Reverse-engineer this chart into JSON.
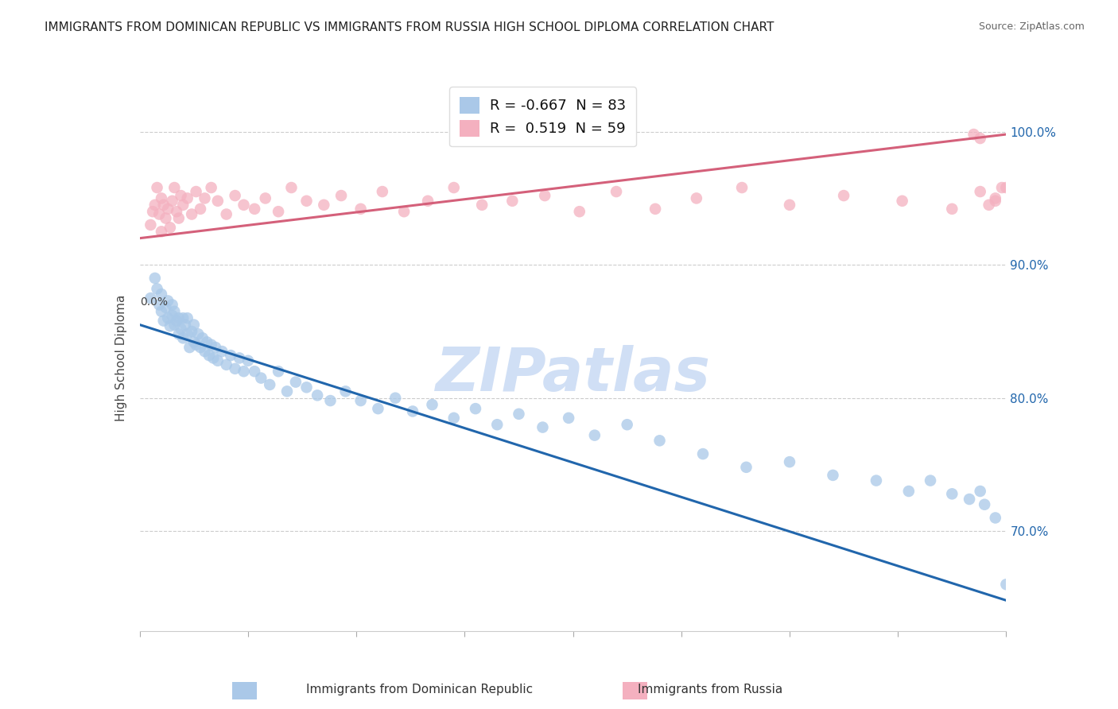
{
  "title": "IMMIGRANTS FROM DOMINICAN REPUBLIC VS IMMIGRANTS FROM RUSSIA HIGH SCHOOL DIPLOMA CORRELATION CHART",
  "source": "Source: ZipAtlas.com",
  "ylabel": "High School Diploma",
  "ytick_labels": [
    "100.0%",
    "90.0%",
    "80.0%",
    "70.0%"
  ],
  "ytick_values": [
    1.0,
    0.9,
    0.8,
    0.7
  ],
  "xlim": [
    0.0,
    0.4
  ],
  "ylim": [
    0.625,
    1.035
  ],
  "blue_color": "#a8c8e8",
  "pink_color": "#f4b0bf",
  "blue_line_color": "#2166ac",
  "pink_line_color": "#d4607a",
  "background_color": "#ffffff",
  "watermark_text": "ZIPatlas",
  "watermark_color": "#d0dff5",
  "title_fontsize": 11,
  "source_fontsize": 9,
  "blue_dots_x": [
    0.005,
    0.007,
    0.008,
    0.009,
    0.01,
    0.01,
    0.011,
    0.012,
    0.013,
    0.013,
    0.014,
    0.015,
    0.015,
    0.016,
    0.016,
    0.017,
    0.018,
    0.018,
    0.019,
    0.02,
    0.02,
    0.021,
    0.022,
    0.022,
    0.023,
    0.024,
    0.025,
    0.025,
    0.026,
    0.027,
    0.028,
    0.029,
    0.03,
    0.031,
    0.032,
    0.033,
    0.034,
    0.035,
    0.036,
    0.038,
    0.04,
    0.042,
    0.044,
    0.046,
    0.048,
    0.05,
    0.053,
    0.056,
    0.06,
    0.064,
    0.068,
    0.072,
    0.077,
    0.082,
    0.088,
    0.095,
    0.102,
    0.11,
    0.118,
    0.126,
    0.135,
    0.145,
    0.155,
    0.165,
    0.175,
    0.186,
    0.198,
    0.21,
    0.225,
    0.24,
    0.26,
    0.28,
    0.3,
    0.32,
    0.34,
    0.355,
    0.365,
    0.375,
    0.383,
    0.388,
    0.39,
    0.395,
    0.4
  ],
  "blue_dots_y": [
    0.875,
    0.89,
    0.882,
    0.87,
    0.865,
    0.878,
    0.858,
    0.868,
    0.86,
    0.873,
    0.854,
    0.862,
    0.87,
    0.855,
    0.865,
    0.858,
    0.86,
    0.848,
    0.852,
    0.86,
    0.845,
    0.855,
    0.848,
    0.86,
    0.838,
    0.85,
    0.842,
    0.855,
    0.84,
    0.848,
    0.838,
    0.845,
    0.835,
    0.842,
    0.832,
    0.84,
    0.83,
    0.838,
    0.828,
    0.835,
    0.825,
    0.832,
    0.822,
    0.83,
    0.82,
    0.828,
    0.82,
    0.815,
    0.81,
    0.82,
    0.805,
    0.812,
    0.808,
    0.802,
    0.798,
    0.805,
    0.798,
    0.792,
    0.8,
    0.79,
    0.795,
    0.785,
    0.792,
    0.78,
    0.788,
    0.778,
    0.785,
    0.772,
    0.78,
    0.768,
    0.758,
    0.748,
    0.752,
    0.742,
    0.738,
    0.73,
    0.738,
    0.728,
    0.724,
    0.73,
    0.72,
    0.71,
    0.66
  ],
  "pink_dots_x": [
    0.005,
    0.006,
    0.007,
    0.008,
    0.009,
    0.01,
    0.01,
    0.011,
    0.012,
    0.013,
    0.014,
    0.015,
    0.016,
    0.017,
    0.018,
    0.019,
    0.02,
    0.022,
    0.024,
    0.026,
    0.028,
    0.03,
    0.033,
    0.036,
    0.04,
    0.044,
    0.048,
    0.053,
    0.058,
    0.064,
    0.07,
    0.077,
    0.085,
    0.093,
    0.102,
    0.112,
    0.122,
    0.133,
    0.145,
    0.158,
    0.172,
    0.187,
    0.203,
    0.22,
    0.238,
    0.257,
    0.278,
    0.3,
    0.325,
    0.352,
    0.375,
    0.388,
    0.395,
    0.398,
    0.4,
    0.395,
    0.392,
    0.388,
    0.385
  ],
  "pink_dots_y": [
    0.93,
    0.94,
    0.945,
    0.958,
    0.938,
    0.95,
    0.925,
    0.945,
    0.935,
    0.942,
    0.928,
    0.948,
    0.958,
    0.94,
    0.935,
    0.952,
    0.945,
    0.95,
    0.938,
    0.955,
    0.942,
    0.95,
    0.958,
    0.948,
    0.938,
    0.952,
    0.945,
    0.942,
    0.95,
    0.94,
    0.958,
    0.948,
    0.945,
    0.952,
    0.942,
    0.955,
    0.94,
    0.948,
    0.958,
    0.945,
    0.948,
    0.952,
    0.94,
    0.955,
    0.942,
    0.95,
    0.958,
    0.945,
    0.952,
    0.948,
    0.942,
    0.955,
    0.948,
    0.958,
    0.958,
    0.95,
    0.945,
    0.995,
    0.998
  ],
  "blue_line_x": [
    0.0,
    0.4
  ],
  "blue_line_y": [
    0.855,
    0.648
  ],
  "pink_line_x": [
    0.0,
    0.4
  ],
  "pink_line_y": [
    0.92,
    0.998
  ],
  "legend_label_blue": "R = -0.667  N = 83",
  "legend_label_pink": "R =  0.519  N = 59",
  "legend_patch_blue": "#aac8e8",
  "legend_patch_pink": "#f4b0bf",
  "bottom_label_blue": "Immigrants from Dominican Republic",
  "bottom_label_pink": "Immigrants from Russia"
}
